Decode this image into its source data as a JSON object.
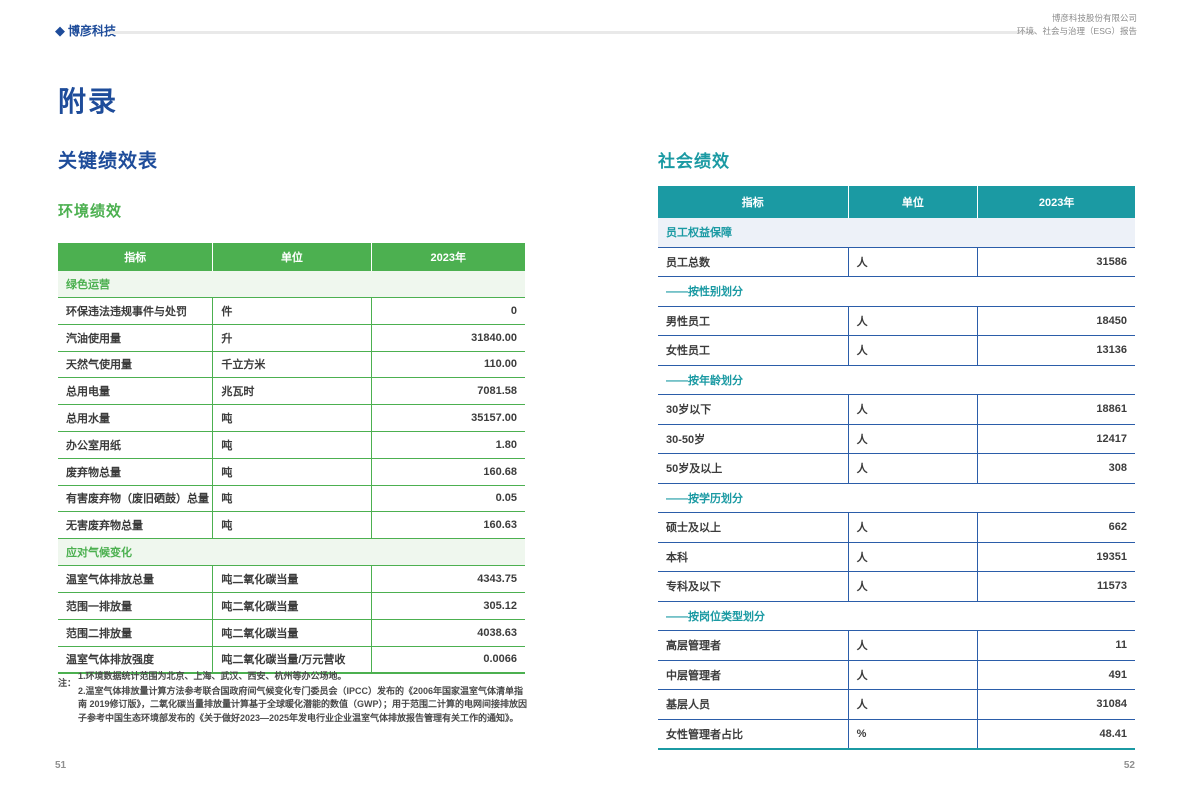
{
  "page_header": {
    "logo_text": "博彦科技",
    "company_name": "博彦科技股份有限公司",
    "report_title": "环境、社会与治理（ESG）报告"
  },
  "titles": {
    "appendix": "附录",
    "kpi_table": "关键绩效表",
    "environmental": "环境绩效",
    "social": "社会绩效"
  },
  "colors": {
    "accent_blue": "#1e4c9a",
    "env_green": "#4cb050",
    "env_section_bg": "#eff7ee",
    "social_teal": "#1b9aa3",
    "social_border_blue": "#2b5da9",
    "social_section_bg": "#edf1f8",
    "muted_gray": "#8c8c8c"
  },
  "env_table": {
    "headers": [
      "指标",
      "单位",
      "2023年"
    ],
    "rows": [
      {
        "type": "section",
        "label": "绿色运营"
      },
      {
        "type": "data",
        "indicator": "环保违法违规事件与处罚",
        "unit": "件",
        "value": "0"
      },
      {
        "type": "data",
        "indicator": "汽油使用量",
        "unit": "升",
        "value": "31840.00"
      },
      {
        "type": "data",
        "indicator": "天然气使用量",
        "unit": "千立方米",
        "value": "110.00"
      },
      {
        "type": "data",
        "indicator": "总用电量",
        "unit": "兆瓦时",
        "value": "7081.58"
      },
      {
        "type": "data",
        "indicator": "总用水量",
        "unit": "吨",
        "value": "35157.00"
      },
      {
        "type": "data",
        "indicator": "办公室用纸",
        "unit": "吨",
        "value": "1.80"
      },
      {
        "type": "data",
        "indicator": "废弃物总量",
        "unit": "吨",
        "value": "160.68"
      },
      {
        "type": "data",
        "indicator": "有害废弃物（废旧硒鼓）总量",
        "unit": "吨",
        "value": "0.05"
      },
      {
        "type": "data",
        "indicator": "无害废弃物总量",
        "unit": "吨",
        "value": "160.63"
      },
      {
        "type": "section",
        "label": "应对气候变化"
      },
      {
        "type": "data",
        "indicator": "温室气体排放总量",
        "unit": "吨二氧化碳当量",
        "value": "4343.75"
      },
      {
        "type": "data",
        "indicator": "范围一排放量",
        "unit": "吨二氧化碳当量",
        "value": "305.12"
      },
      {
        "type": "data",
        "indicator": "范围二排放量",
        "unit": "吨二氧化碳当量",
        "value": "4038.63"
      },
      {
        "type": "data",
        "indicator": "温室气体排放强度",
        "unit": "吨二氧化碳当量/万元营收",
        "value": "0.0066"
      }
    ]
  },
  "social_table": {
    "headers": [
      "指标",
      "单位",
      "2023年"
    ],
    "rows": [
      {
        "type": "section",
        "label": "员工权益保障"
      },
      {
        "type": "data",
        "indicator": "员工总数",
        "unit": "人",
        "value": "31586"
      },
      {
        "type": "subsection",
        "label": "——按性别划分"
      },
      {
        "type": "data",
        "indicator": "男性员工",
        "unit": "人",
        "value": "18450"
      },
      {
        "type": "data",
        "indicator": "女性员工",
        "unit": "人",
        "value": "13136"
      },
      {
        "type": "subsection",
        "label": "——按年龄划分"
      },
      {
        "type": "data",
        "indicator": "30岁以下",
        "unit": "人",
        "value": "18861"
      },
      {
        "type": "data",
        "indicator": "30-50岁",
        "unit": "人",
        "value": "12417"
      },
      {
        "type": "data",
        "indicator": "50岁及以上",
        "unit": "人",
        "value": "308"
      },
      {
        "type": "subsection",
        "label": "——按学历划分"
      },
      {
        "type": "data",
        "indicator": "硕士及以上",
        "unit": "人",
        "value": "662"
      },
      {
        "type": "data",
        "indicator": "本科",
        "unit": "人",
        "value": "19351"
      },
      {
        "type": "data",
        "indicator": "专科及以下",
        "unit": "人",
        "value": "11573"
      },
      {
        "type": "subsection",
        "label": "——按岗位类型划分"
      },
      {
        "type": "data",
        "indicator": "高层管理者",
        "unit": "人",
        "value": "11"
      },
      {
        "type": "data",
        "indicator": "中层管理者",
        "unit": "人",
        "value": "491"
      },
      {
        "type": "data",
        "indicator": "基层人员",
        "unit": "人",
        "value": "31084"
      },
      {
        "type": "data",
        "indicator": "女性管理者占比",
        "unit": "%",
        "value": "48.41"
      }
    ]
  },
  "notes": {
    "label": "注：",
    "items": [
      "1.环境数据统计范围为北京、上海、武汉、西安、杭州等办公场地。",
      "2.温室气体排放量计算方法参考联合国政府间气候变化专门委员会（IPCC）发布的《2006年国家温室气体清单指南 2019修订版》，二氧化碳当量排放量计算基于全球暖化潜能的数值（GWP）；用于范围二计算的电网间接排放因子参考中国生态环境部发布的《关于做好2023—2025年发电行业企业温室气体排放报告管理有关工作的通知》。"
    ]
  },
  "footer": {
    "left_page": "51",
    "right_page": "52"
  }
}
